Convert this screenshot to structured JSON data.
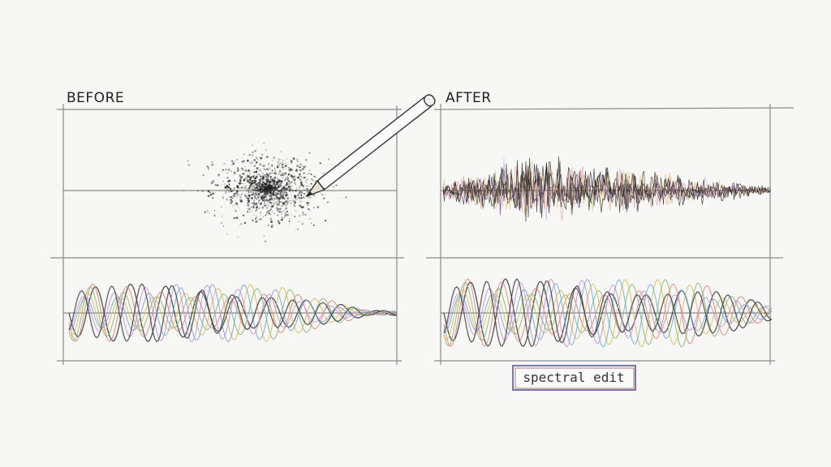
{
  "panels": {
    "before": {
      "label": "BEFORE"
    },
    "after": {
      "label": "AFTER"
    }
  },
  "caption": "spectral edit"
}
